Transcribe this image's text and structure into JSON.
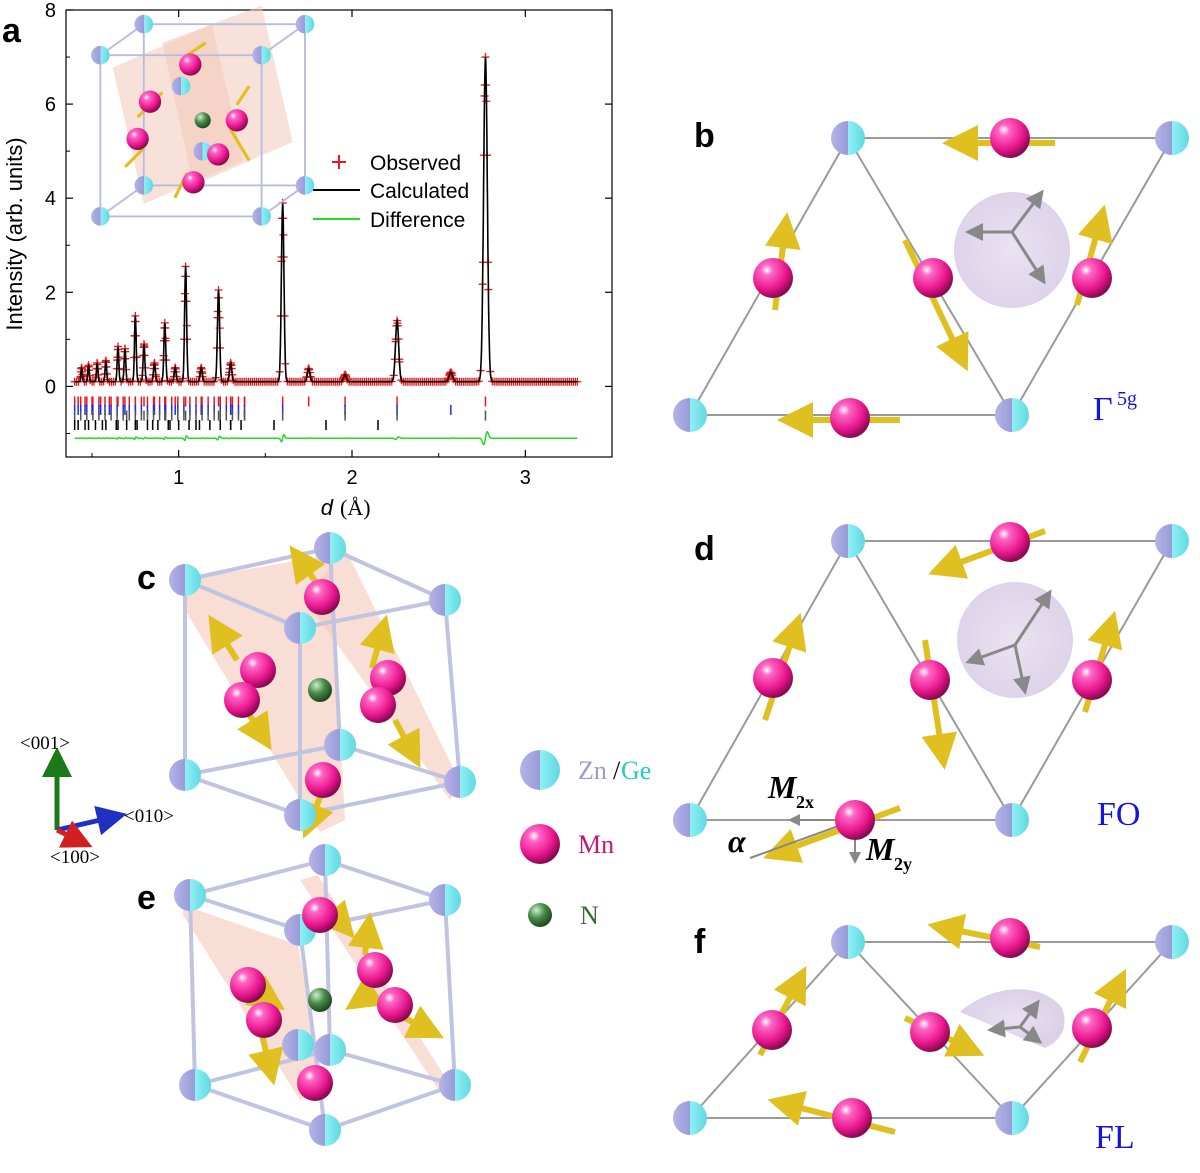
{
  "panels": {
    "a": "a",
    "b": "b",
    "c": "c",
    "d": "d",
    "e": "e",
    "f": "f"
  },
  "chart_data": {
    "type": "scatter",
    "xlabel_italic": "d",
    "xlabel_unit": "(Å)",
    "ylabel": "Intensity (arb. units)",
    "xlim": [
      0.35,
      3.5
    ],
    "ylim": [
      -1.5,
      8
    ],
    "xticks": [
      "1",
      "2",
      "3"
    ],
    "xtick_values": [
      1,
      2,
      3
    ],
    "yticks": [
      "0",
      "2",
      "4",
      "6",
      "8"
    ],
    "ytick_values": [
      0,
      2,
      4,
      6,
      8
    ],
    "legend": [
      "Observed",
      "Calculated",
      "Difference"
    ],
    "colors": {
      "observed": "#e8181c",
      "calculated": "#000000",
      "difference": "#22dd22",
      "tick1": "#e8181c",
      "tick2": "#1c2ee8",
      "tick3": "#555555",
      "tick4": "#000000"
    },
    "peaks": [
      {
        "d": 2.77,
        "h": 6.9
      },
      {
        "d": 1.6,
        "h": 3.8
      },
      {
        "d": 2.26,
        "h": 1.3
      },
      {
        "d": 1.04,
        "h": 2.45
      },
      {
        "d": 1.23,
        "h": 1.95
      },
      {
        "d": 0.92,
        "h": 1.25
      },
      {
        "d": 0.75,
        "h": 1.4
      },
      {
        "d": 0.8,
        "h": 0.8
      },
      {
        "d": 0.69,
        "h": 0.7
      },
      {
        "d": 0.65,
        "h": 0.75
      },
      {
        "d": 1.75,
        "h": 0.28
      },
      {
        "d": 2.57,
        "h": 0.2
      },
      {
        "d": 1.96,
        "h": 0.15
      },
      {
        "d": 1.3,
        "h": 0.4
      },
      {
        "d": 1.13,
        "h": 0.3
      },
      {
        "d": 0.98,
        "h": 0.3
      },
      {
        "d": 0.86,
        "h": 0.4
      },
      {
        "d": 0.58,
        "h": 0.45
      },
      {
        "d": 0.53,
        "h": 0.4
      },
      {
        "d": 0.48,
        "h": 0.35
      },
      {
        "d": 0.44,
        "h": 0.3
      }
    ],
    "background": 0.1,
    "difference_offset": -1.1,
    "tick_rows": {
      "red": {
        "y": -0.32,
        "d": [
          2.77,
          2.26,
          1.96,
          1.75,
          1.6,
          1.38,
          1.3,
          1.23,
          1.13,
          1.04,
          0.98,
          0.92,
          0.86,
          0.8,
          0.75,
          0.69,
          0.65,
          0.6,
          0.55,
          0.5,
          0.46,
          0.42
        ]
      },
      "blue": {
        "y": -0.5,
        "d": [
          2.57,
          2.26,
          1.96,
          1.6,
          1.3,
          1.13,
          0.98,
          0.92,
          0.86,
          0.75,
          0.69,
          0.6,
          0.55,
          0.5,
          0.46,
          0.42
        ]
      },
      "gray": {
        "y": -0.62,
        "d": [
          2.77,
          2.26,
          1.96,
          1.6,
          1.38,
          1.23,
          1.04,
          0.92,
          0.8,
          0.7
        ]
      },
      "black": {
        "y": -0.82,
        "d": [
          2.15,
          1.85,
          1.55,
          1.3,
          1.1,
          0.95,
          0.85,
          0.75,
          0.65,
          0.56,
          0.48,
          0.42
        ]
      }
    }
  },
  "axes_triad": {
    "z": "<001>",
    "y": "<010>",
    "x": "<100>"
  },
  "legend_atoms": {
    "zn": "Zn",
    "slash": "/",
    "ge": "Ge",
    "mn": "Mn",
    "n": "N"
  },
  "panel_b": {
    "gamma": "Γ",
    "sup": "5g"
  },
  "panel_d": {
    "label": "FO",
    "m2x_main": "M",
    "m2x_sub": "2x",
    "m2y_main": "M",
    "m2y_sub": "2y",
    "alpha": "α"
  },
  "panel_f": {
    "label": "FL"
  },
  "colors": {
    "mn": "#e8148c",
    "zn": "#a8a8e0",
    "ge": "#7ee8f0",
    "n": "#3a7a3a",
    "arrow": "#e0c020",
    "plane": "#f3c8b8",
    "label_blue": "#1414e0",
    "mn_text": "#c81478",
    "n_text": "#3a6a3a",
    "zn_text": "#9a9ad0",
    "ge_text": "#22cccc"
  }
}
